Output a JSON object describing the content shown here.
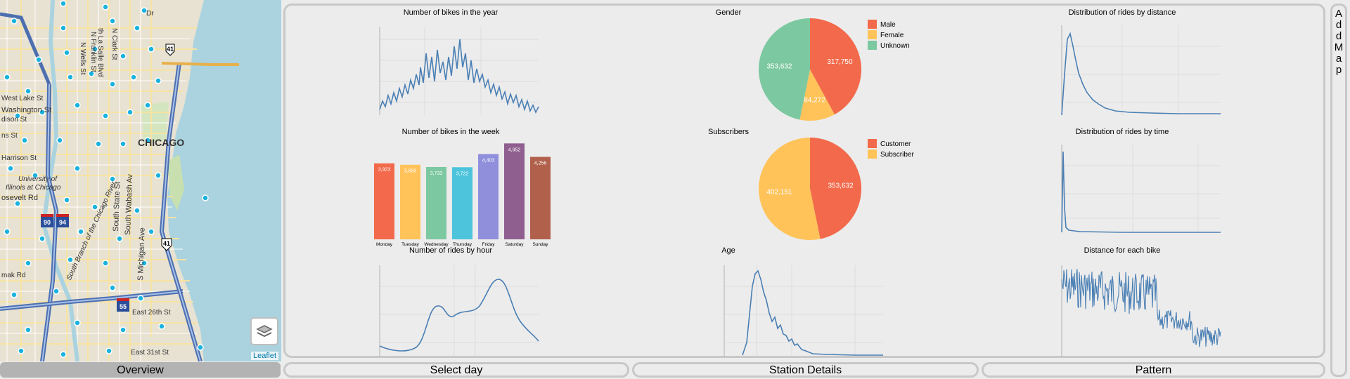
{
  "map": {
    "city_label": "CHICAGO",
    "attribution": "Leaflet",
    "street_labels": [
      "Dr",
      "th La Salle Blvd",
      "N Franklin St",
      "N Clark St",
      "N Wells St",
      "West Lake St",
      "Washington St",
      "dison St",
      "ns St",
      "Harrison St",
      "University of",
      "Illinois at Chicago",
      "osevelt Rd",
      "South State St",
      "South Wabash Av",
      "S Michigan Ave",
      "South Branch of the Chicago River",
      "East 26th St",
      "East 31st St",
      "mak Rd"
    ],
    "shield_labels": [
      "41",
      "90",
      "94",
      "41",
      "55"
    ]
  },
  "charts": {
    "bikes_year": {
      "title": "Number of bikes in the year"
    },
    "bikes_week": {
      "title": "Number of bikes in the week"
    },
    "rides_hour": {
      "title": "Number of rides by hour"
    },
    "gender": {
      "title": "Gender"
    },
    "subscribers": {
      "title": "Subscribers"
    },
    "age": {
      "title": "Age"
    },
    "dist_distance": {
      "title": "Distribution of rides by distance"
    },
    "dist_time": {
      "title": "Distribution of rides by time"
    },
    "distance_bike": {
      "title": "Distance for each bike"
    }
  },
  "chart_data": [
    {
      "id": "bikes_week",
      "type": "bar",
      "title": "Number of bikes in the week",
      "categories": [
        "Monday",
        "Tuesday",
        "Wednesday",
        "Thursday",
        "Friday",
        "Saturday",
        "Sunday"
      ],
      "values": [
        3923,
        3850,
        3733,
        3722,
        4403,
        4952,
        4256
      ],
      "labels": [
        "3,923",
        "3,850",
        "3,733",
        "3,722",
        "4,403",
        "4,952",
        "4,256"
      ],
      "colors": [
        "#f26a4b",
        "#ffc35a",
        "#7cc8a0",
        "#4dc4dc",
        "#8f8fdc",
        "#8f5f8f",
        "#b0604b"
      ]
    },
    {
      "id": "gender",
      "type": "pie",
      "title": "Gender",
      "categories": [
        "Male",
        "Female",
        "Unknown"
      ],
      "values": [
        317750,
        84272,
        353632
      ],
      "labels": [
        "317,750",
        "84,272",
        "353,632"
      ],
      "colors": [
        "#f26a4b",
        "#ffc35a",
        "#7cc8a0"
      ]
    },
    {
      "id": "subscribers",
      "type": "pie",
      "title": "Subscribers",
      "categories": [
        "Customer",
        "Subscriber"
      ],
      "values": [
        353632,
        402151
      ],
      "labels": [
        "353,632",
        "402,151"
      ],
      "colors": [
        "#f26a4b",
        "#ffc35a"
      ]
    }
  ],
  "tabs": [
    "Overview",
    "Select day",
    "Station Details",
    "Pattern"
  ],
  "side_button": "AddMap"
}
